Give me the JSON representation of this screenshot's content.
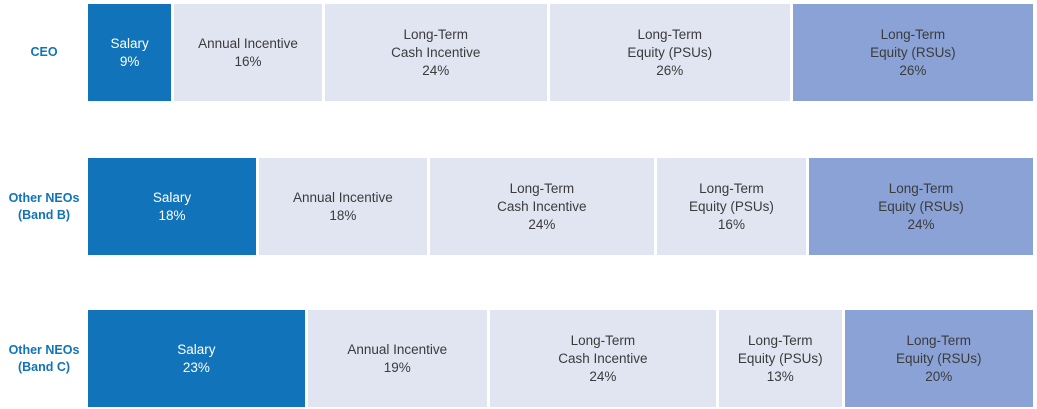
{
  "chart_data": {
    "type": "bar",
    "variant": "horizontal-stacked-percentage",
    "title": "",
    "xlabel": "",
    "ylabel": "",
    "legend_position": "none",
    "grid": false,
    "categories": [
      "CEO",
      "Other NEOs (Band B)",
      "Other NEOs (Band C)"
    ],
    "series": [
      {
        "name": "Salary",
        "values": [
          9,
          18,
          23
        ]
      },
      {
        "name": "Annual Incentive",
        "values": [
          16,
          18,
          19
        ]
      },
      {
        "name": "Long-Term Cash Incentive",
        "values": [
          24,
          24,
          24
        ]
      },
      {
        "name": "Long-Term Equity (PSUs)",
        "values": [
          26,
          16,
          13
        ]
      },
      {
        "name": "Long-Term Equity (RSUs)",
        "values": [
          26,
          24,
          20
        ]
      }
    ],
    "colors": {
      "salary_fill": "#1173b9",
      "light_fill": "#e1e5f2",
      "rsu_fill": "#8aa2d6",
      "label_blue": "#1173b9",
      "segment_text_dark": "#3b3b3b",
      "segment_text_on_salary": "#ffffff",
      "separator_white": "#ffffff"
    },
    "rows": [
      {
        "label_line1": "CEO",
        "segments": [
          {
            "name": "Salary",
            "value": 9,
            "line1": "Salary",
            "pct": "9%"
          },
          {
            "name": "Annual Incentive",
            "value": 16,
            "line1": "Annual Incentive",
            "pct": "16%"
          },
          {
            "name": "Long-Term Cash Incentive",
            "value": 24,
            "line1": "Long-Term",
            "line2": "Cash Incentive",
            "pct": "24%"
          },
          {
            "name": "Long-Term Equity (PSUs)",
            "value": 26,
            "line1": "Long-Term",
            "line2": "Equity (PSUs)",
            "pct": "26%"
          },
          {
            "name": "Long-Term Equity (RSUs)",
            "value": 26,
            "line1": "Long-Term",
            "line2": "Equity (RSUs)",
            "pct": "26%"
          }
        ]
      },
      {
        "label_line1": "Other NEOs",
        "label_line2": "(Band B)",
        "segments": [
          {
            "name": "Salary",
            "value": 18,
            "line1": "Salary",
            "pct": "18%"
          },
          {
            "name": "Annual Incentive",
            "value": 18,
            "line1": "Annual Incentive",
            "pct": "18%"
          },
          {
            "name": "Long-Term Cash Incentive",
            "value": 24,
            "line1": "Long-Term",
            "line2": "Cash Incentive",
            "pct": "24%"
          },
          {
            "name": "Long-Term Equity (PSUs)",
            "value": 16,
            "line1": "Long-Term",
            "line2": "Equity (PSUs)",
            "pct": "16%"
          },
          {
            "name": "Long-Term Equity (RSUs)",
            "value": 24,
            "line1": "Long-Term",
            "line2": "Equity (RSUs)",
            "pct": "24%"
          }
        ]
      },
      {
        "label_line1": "Other NEOs",
        "label_line2": "(Band C)",
        "segments": [
          {
            "name": "Salary",
            "value": 23,
            "line1": "Salary",
            "pct": "23%"
          },
          {
            "name": "Annual Incentive",
            "value": 19,
            "line1": "Annual Incentive",
            "pct": "19%"
          },
          {
            "name": "Long-Term Cash Incentive",
            "value": 24,
            "line1": "Long-Term",
            "line2": "Cash Incentive",
            "pct": "24%"
          },
          {
            "name": "Long-Term Equity (PSUs)",
            "value": 13,
            "line1": "Long-Term",
            "line2": "Equity (PSUs)",
            "pct": "13%"
          },
          {
            "name": "Long-Term Equity (RSUs)",
            "value": 20,
            "line1": "Long-Term",
            "line2": "Equity (RSUs)",
            "pct": "20%"
          }
        ]
      }
    ]
  }
}
